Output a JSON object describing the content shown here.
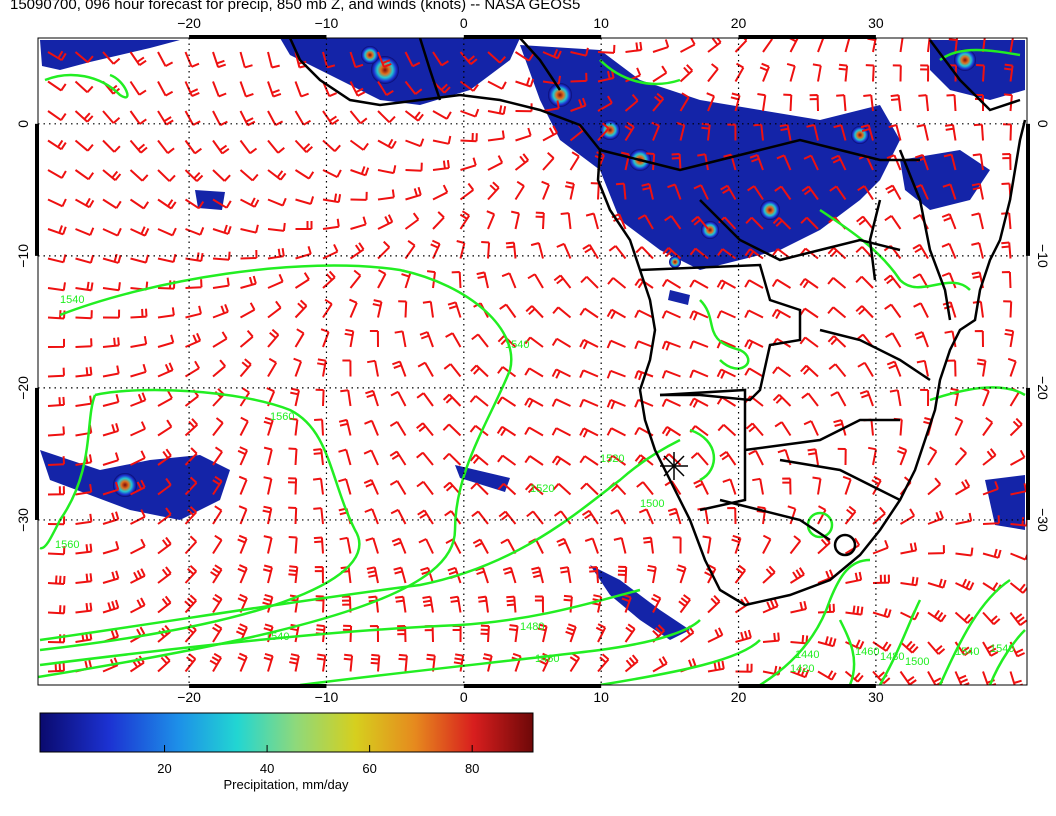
{
  "title": "15090700, 096 hour forecast for precip, 850 mb Z, and winds (knots) -- NASA GEOS5",
  "map": {
    "lon_range": [
      -31,
      41
    ],
    "lat_range": [
      -42.5,
      6.5
    ],
    "lon_ticks": [
      -20,
      -10,
      0,
      10,
      20,
      30
    ],
    "lat_ticks": [
      0,
      -10,
      -20,
      -30
    ],
    "lon_tick_labels": [
      "−20",
      "−10",
      "0",
      "10",
      "20",
      "30"
    ],
    "lat_tick_labels": [
      "0",
      "−10",
      "−20",
      "−30"
    ],
    "colors": {
      "contour": "#22ee22",
      "wind_barbs": "#ee1111",
      "coastline": "#000000",
      "gridlines": "#000000"
    },
    "contour_labels": [
      "1540",
      "1560",
      "1560",
      "1540",
      "1520",
      "1520",
      "1500",
      "1540",
      "1480",
      "1460",
      "1440",
      "1420",
      "1460",
      "1480",
      "1500",
      "1540",
      "1540"
    ]
  },
  "colorbar": {
    "label": "Precipitation, mm/day",
    "ticks": [
      "20",
      "40",
      "60",
      "80"
    ],
    "colors": [
      "#0a0a6e",
      "#1c32d2",
      "#1d8fe8",
      "#22d6d2",
      "#8fd97a",
      "#d6cf1e",
      "#e68a1e",
      "#d81e1e",
      "#6e0808"
    ]
  }
}
